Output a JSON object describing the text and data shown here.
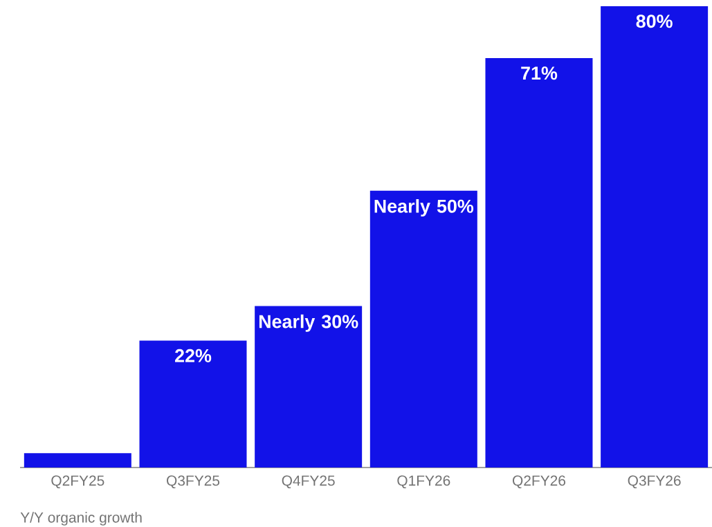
{
  "chart_data": {
    "type": "bar",
    "categories": [
      "Q2FY25",
      "Q3FY25",
      "Q4FY25",
      "Q1FY26",
      "Q2FY26",
      "Q3FY26"
    ],
    "values": [
      2.5,
      22,
      28,
      48,
      71,
      80
    ],
    "value_labels": [
      null,
      "22%",
      "Nearly 30%",
      "Nearly 50%",
      "71%",
      "80%"
    ],
    "color": "#1212e8",
    "annotations": [
      "Y/Y organic growth"
    ]
  }
}
